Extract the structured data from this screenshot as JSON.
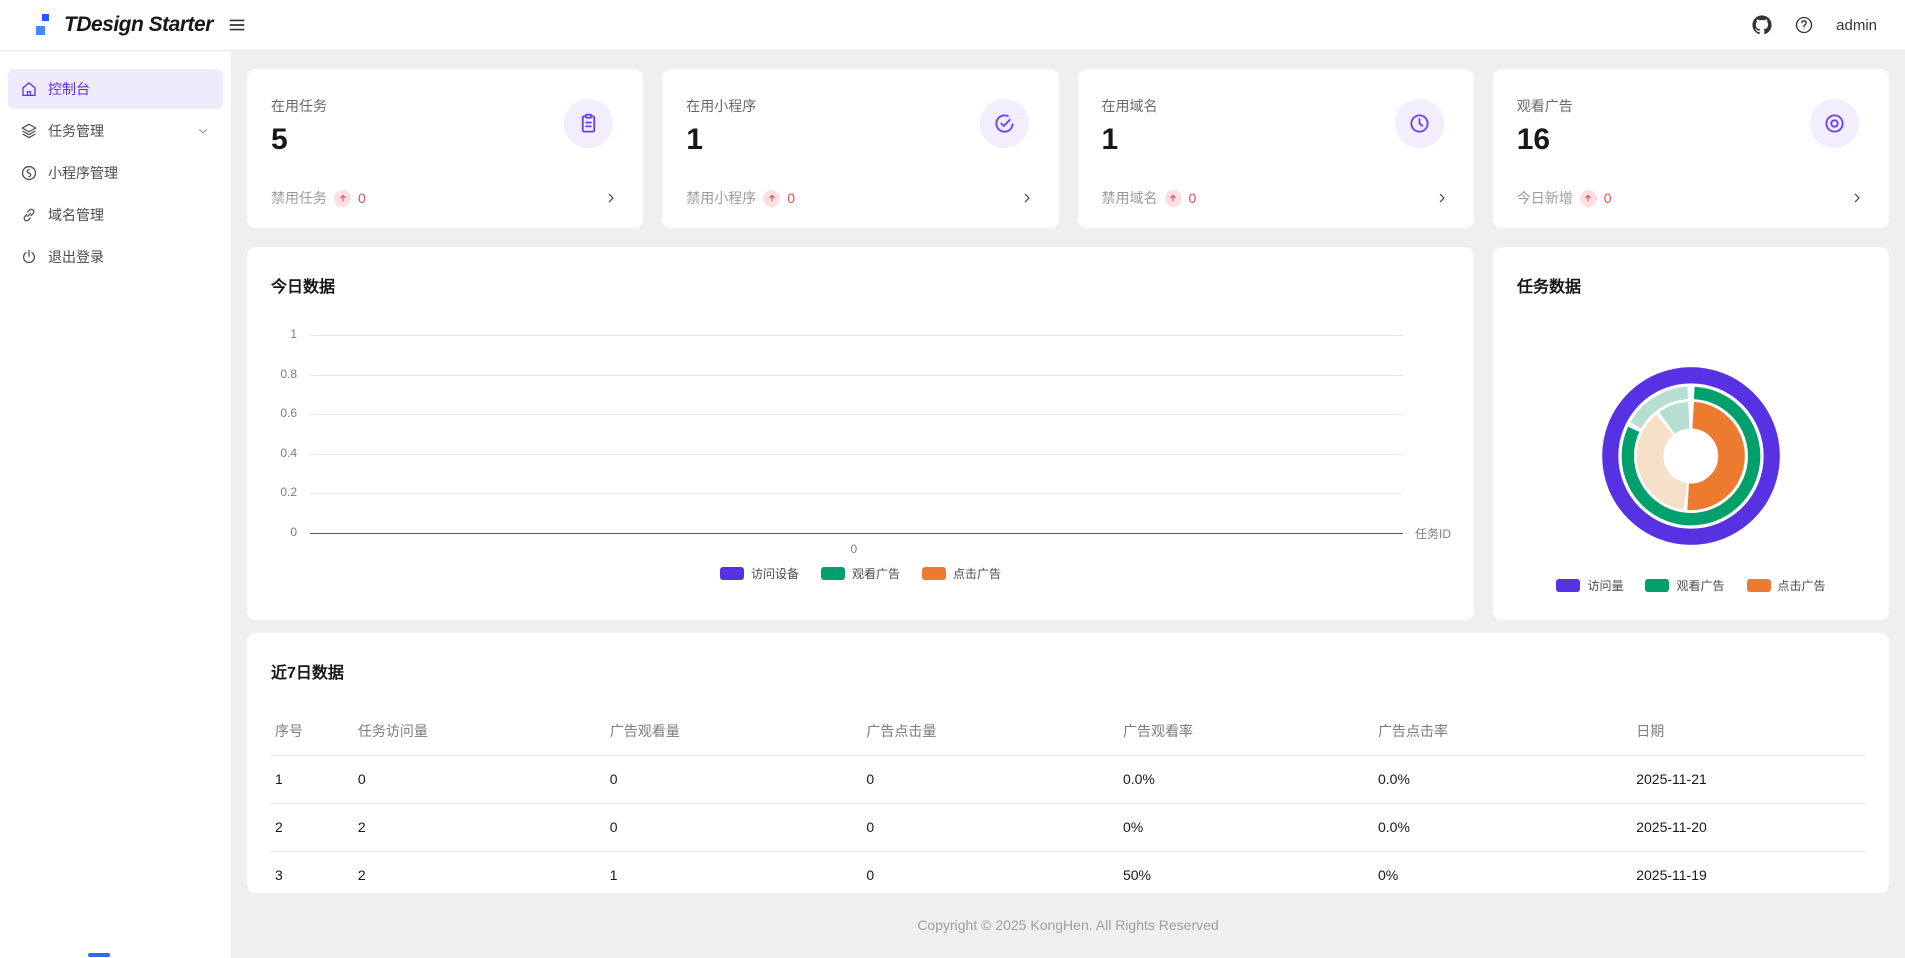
{
  "header": {
    "logo_text": "TDesign Starter",
    "user": "admin",
    "icons": [
      "menu-icon",
      "github-icon",
      "help-icon"
    ]
  },
  "sidebar": {
    "items": [
      {
        "label": "控制台",
        "icon": "home-icon",
        "active": true,
        "expandable": false
      },
      {
        "label": "任务管理",
        "icon": "layers-icon",
        "active": false,
        "expandable": true
      },
      {
        "label": "小程序管理",
        "icon": "miniprogram-icon",
        "active": false,
        "expandable": false
      },
      {
        "label": "域名管理",
        "icon": "link-icon",
        "active": false,
        "expandable": false
      },
      {
        "label": "退出登录",
        "icon": "power-icon",
        "active": false,
        "expandable": false
      }
    ]
  },
  "stat_cards": [
    {
      "label": "在用任务",
      "value": "5",
      "sub_label": "禁用任务",
      "sub_value": "0",
      "icon": "task-icon"
    },
    {
      "label": "在用小程序",
      "value": "1",
      "sub_label": "禁用小程序",
      "sub_value": "0",
      "icon": "check-circle-icon"
    },
    {
      "label": "在用域名",
      "value": "1",
      "sub_label": "禁用域名",
      "sub_value": "0",
      "icon": "time-icon"
    },
    {
      "label": "观看广告",
      "value": "16",
      "sub_label": "今日新增",
      "sub_value": "0",
      "icon": "browse-icon"
    }
  ],
  "today_card": {
    "title": "今日数据"
  },
  "task_card": {
    "title": "任务数据"
  },
  "table_card": {
    "title": "近7日数据",
    "columns": [
      "序号",
      "任务访问量",
      "广告观看量",
      "广告点击量",
      "广告观看率",
      "广告点击率",
      "日期"
    ],
    "rows": [
      [
        "1",
        "0",
        "0",
        "0",
        "0.0%",
        "0.0%",
        "2025-11-21"
      ],
      [
        "2",
        "2",
        "0",
        "0",
        "0%",
        "0.0%",
        "2025-11-20"
      ],
      [
        "3",
        "2",
        "1",
        "0",
        "50%",
        "0%",
        "2025-11-19"
      ]
    ]
  },
  "footer": {
    "copyright": "Copyright © 2025 KongHen. All Rights Reserved"
  },
  "colors": {
    "accent_purple": "#5a2fe0",
    "chart_purple": "#5632e2",
    "chart_green": "#00a06d",
    "chart_orange": "#ed7b2f",
    "chart_mint": "#b8ded4",
    "chart_peach": "#f6e0c9",
    "error_red": "#e34d59"
  },
  "chart_data": [
    {
      "type": "bar",
      "title": "今日数据",
      "xlabel": "任务ID",
      "ylabel": "",
      "ylim": [
        0,
        1
      ],
      "yticks": [
        0,
        0.2,
        0.4,
        0.6,
        0.8,
        1
      ],
      "x_tick_labels": [
        "0"
      ],
      "grid": true,
      "legend_position": "bottom",
      "series": [
        {
          "name": "访问设备",
          "color": "#5632e2",
          "values": [
            0
          ]
        },
        {
          "name": "观看广告",
          "color": "#00a06d",
          "values": [
            0
          ]
        },
        {
          "name": "点击广告",
          "color": "#ed7b2f",
          "values": [
            0
          ]
        }
      ]
    },
    {
      "type": "pie",
      "variant": "sunburst",
      "title": "任务数据",
      "legend_position": "bottom",
      "legend": [
        {
          "name": "访问量",
          "color": "#5632e2"
        },
        {
          "name": "观看广告",
          "color": "#00a06d"
        },
        {
          "name": "点击广告",
          "color": "#ed7b2f"
        }
      ],
      "rings": [
        {
          "name": "访问量",
          "radius": 85,
          "width": 17,
          "segments": [
            {
              "color": "#5632e2",
              "start": 0,
              "end": 360
            }
          ]
        },
        {
          "name": "观看广告",
          "radius": 66.5,
          "width": 13,
          "segments": [
            {
              "color": "#00a06d",
              "start": 3,
              "end": 295
            },
            {
              "color": "#b8ded4",
              "start": 299,
              "end": 357
            }
          ]
        },
        {
          "name": "点击广告",
          "radius": 43,
          "width": 28,
          "segments": [
            {
              "color": "#ed7b2f",
              "start": 3,
              "end": 184
            },
            {
              "color": "#f6e0c9",
              "start": 188,
              "end": 320
            },
            {
              "color": "#b8ded4",
              "start": 324,
              "end": 357
            }
          ]
        }
      ]
    }
  ]
}
